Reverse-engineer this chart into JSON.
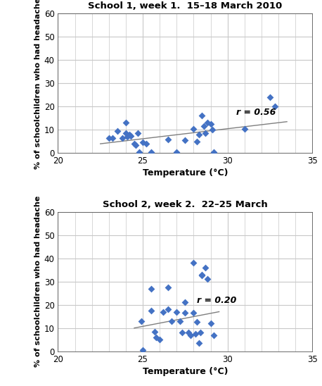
{
  "plot1": {
    "title": "School 1, week 1.  15–18 March 2010",
    "scatter_x": [
      23.0,
      23.2,
      23.5,
      23.8,
      24.0,
      24.0,
      24.1,
      24.2,
      24.3,
      24.5,
      24.6,
      24.7,
      24.8,
      25.0,
      25.2,
      25.5,
      26.5,
      27.0,
      27.5,
      28.0,
      28.2,
      28.3,
      28.5,
      28.6,
      28.7,
      28.8,
      29.0,
      29.1,
      29.2,
      31.0,
      32.5,
      32.8
    ],
    "scatter_y": [
      6.5,
      6.5,
      9.5,
      6.5,
      13.0,
      8.5,
      7.0,
      8.0,
      7.5,
      4.0,
      3.5,
      8.5,
      0.5,
      4.5,
      4.0,
      0.5,
      6.0,
      0.5,
      5.5,
      10.5,
      5.0,
      8.0,
      16.0,
      11.5,
      8.5,
      13.0,
      12.5,
      10.0,
      0.5,
      10.5,
      24.0,
      20.0
    ],
    "trendline_x": [
      22.5,
      33.5
    ],
    "trendline_y": [
      4.0,
      13.5
    ],
    "r_label": "r = 0.56",
    "r_x": 30.5,
    "r_y": 17.5,
    "xlabel": "Temperature (°C)",
    "ylabel": "% of schoolchildren who had headache",
    "xlim": [
      20,
      35
    ],
    "ylim": [
      0,
      60
    ],
    "xticks": [
      20,
      25,
      30,
      35
    ],
    "yticks": [
      0,
      10,
      20,
      30,
      40,
      50,
      60
    ]
  },
  "plot2": {
    "title": "School 2, week 2.  22–25 March",
    "scatter_x": [
      24.9,
      25.0,
      25.5,
      25.5,
      25.7,
      25.8,
      26.0,
      26.2,
      26.5,
      26.5,
      26.7,
      27.0,
      27.2,
      27.3,
      27.5,
      27.5,
      27.7,
      27.8,
      28.0,
      28.0,
      28.1,
      28.2,
      28.3,
      28.4,
      28.5,
      28.5,
      28.7,
      28.8,
      29.0,
      29.2
    ],
    "scatter_y": [
      13.0,
      0.5,
      27.0,
      17.5,
      8.5,
      6.0,
      5.0,
      17.0,
      27.5,
      18.0,
      13.0,
      17.0,
      13.0,
      8.0,
      21.0,
      16.5,
      8.0,
      7.0,
      38.0,
      16.5,
      7.5,
      12.5,
      3.5,
      8.0,
      33.0,
      32.5,
      36.0,
      31.0,
      12.0,
      7.0
    ],
    "trendline_x": [
      24.5,
      29.5
    ],
    "trendline_y": [
      10.0,
      17.0
    ],
    "r_label": "r = 0.20",
    "r_x": 28.2,
    "r_y": 22.0,
    "xlabel": "Temperature (°C)",
    "ylabel": "% of schoolchildren who had headache",
    "xlim": [
      20,
      35
    ],
    "ylim": [
      0,
      60
    ],
    "xticks": [
      20,
      25,
      30,
      35
    ],
    "yticks": [
      0,
      10,
      20,
      30,
      40,
      50,
      60
    ]
  },
  "scatter_color": "#4472c4",
  "trendline_color": "#7f7f7f",
  "grid_major_color": "#c8c8c8",
  "grid_minor_color": "#e0e0e0",
  "bg_color": "#ffffff",
  "marker": "D",
  "marker_size": 5,
  "title_fontsize": 9.5,
  "label_fontsize": 9,
  "tick_fontsize": 8.5,
  "r_fontsize": 9
}
